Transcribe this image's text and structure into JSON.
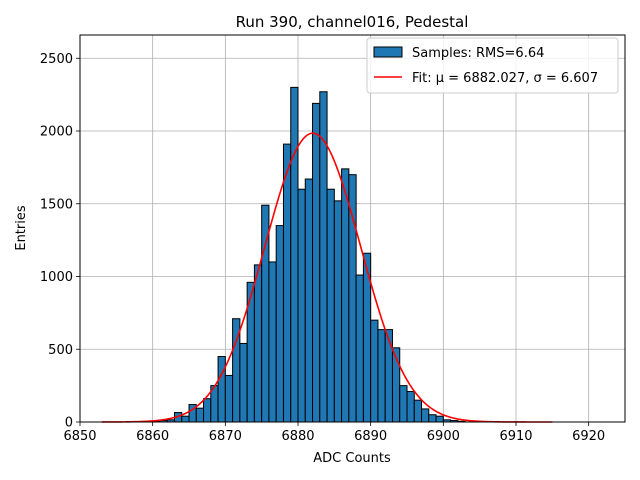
{
  "chart_data": {
    "type": "bar",
    "title": "Run 390, channel016, Pedestal",
    "xlabel": "ADC Counts",
    "ylabel": "Entries",
    "xlim": [
      6850,
      6925
    ],
    "ylim": [
      0,
      2660
    ],
    "grid": true,
    "legend_position": "top-right",
    "x_ticks": [
      6850,
      6860,
      6870,
      6880,
      6890,
      6900,
      6910,
      6920
    ],
    "y_ticks": [
      0,
      500,
      1000,
      1500,
      2000,
      2500
    ],
    "colors": {
      "bars": "#1f77b4",
      "bar_edge": "#000000",
      "fit": "#ff0000"
    },
    "histogram": {
      "name": "Samples: RMS=6.64",
      "bin_width": 1,
      "bin_start": [
        6860,
        6861,
        6862,
        6863,
        6864,
        6865,
        6866,
        6867,
        6868,
        6869,
        6870,
        6871,
        6872,
        6873,
        6874,
        6875,
        6876,
        6877,
        6878,
        6879,
        6880,
        6881,
        6882,
        6883,
        6884,
        6885,
        6886,
        6887,
        6888,
        6889,
        6890,
        6891,
        6892,
        6893,
        6894,
        6895,
        6896,
        6897,
        6898,
        6899,
        6900,
        6901,
        6902
      ],
      "counts": [
        5,
        10,
        15,
        65,
        40,
        120,
        95,
        160,
        250,
        450,
        320,
        710,
        540,
        960,
        1080,
        1490,
        1100,
        1350,
        1910,
        2300,
        1600,
        1670,
        2190,
        2270,
        1600,
        1520,
        1740,
        1700,
        1010,
        1160,
        700,
        635,
        635,
        510,
        250,
        210,
        150,
        90,
        50,
        40,
        15,
        10,
        5
      ]
    },
    "fit": {
      "name": "Fit: μ = 6882.027, σ = 6.607",
      "mu": 6882.027,
      "sigma": 6.607,
      "amplitude": 1985,
      "x_range": [
        6853,
        6915
      ]
    }
  }
}
